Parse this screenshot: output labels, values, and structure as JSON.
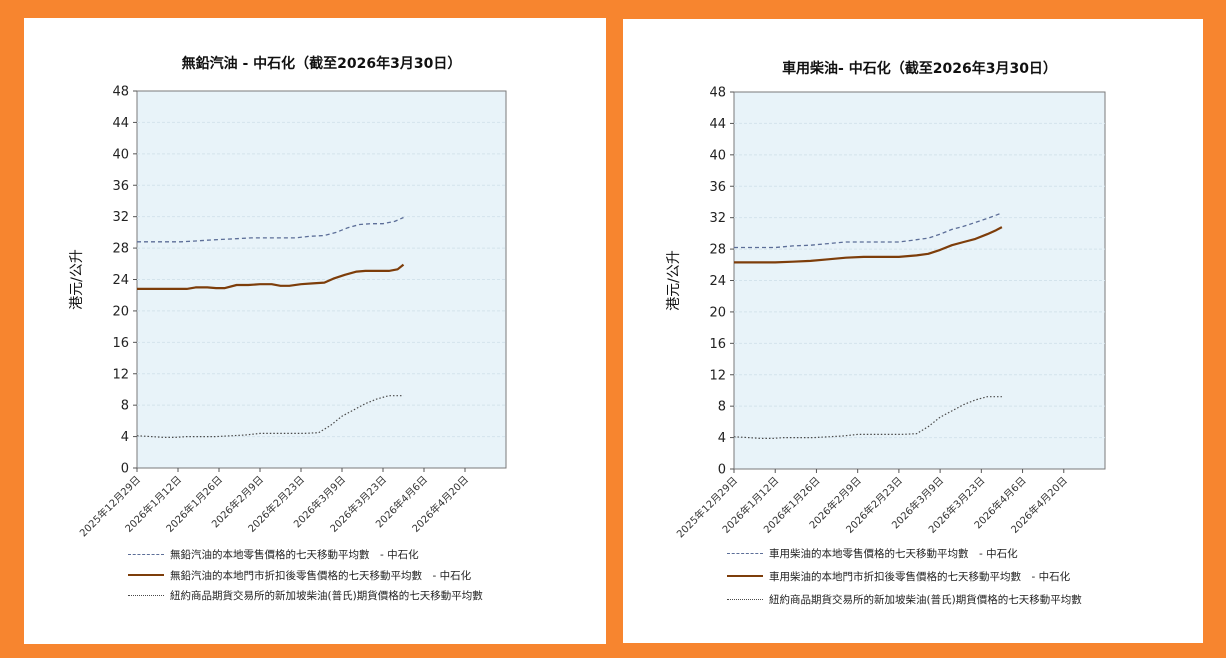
{
  "colors": {
    "background": "#f7852f",
    "panel": "#ffffff",
    "plot_area": "#e8f3f9",
    "dashed_series": "#5c6e98",
    "solid_series": "#7d3d0a",
    "dotted_series": "#4a4a4a"
  },
  "chart_data": [
    {
      "type": "line",
      "title": "無鉛汽油 - 中石化（截至2026年3月30日）",
      "ylabel": "港元/公升",
      "xlabel": "",
      "ylim": [
        0,
        48
      ],
      "yticks": [
        0,
        4,
        8,
        12,
        16,
        20,
        24,
        28,
        32,
        36,
        40,
        44,
        48
      ],
      "x_range": [
        "2025-12-29",
        "2026-05-04"
      ],
      "xticks": [
        "2025年12月29日",
        "2026年1月12日",
        "2026年1月26日",
        "2026年2月9日",
        "2026年2月23日",
        "2026年3月9日",
        "2026年3月23日",
        "2026年4月6日",
        "2026年4月20日"
      ],
      "grid": true,
      "legend_position": "bottom",
      "series": [
        {
          "name": "無鉛汽油的本地零售價格的七天移動平均數　- 中石化",
          "style": "dashed",
          "x": [
            "2025-12-29",
            "2026-01-03",
            "2026-01-08",
            "2026-01-13",
            "2026-01-18",
            "2026-01-22",
            "2026-01-27",
            "2026-02-01",
            "2026-02-06",
            "2026-02-11",
            "2026-02-16",
            "2026-02-21",
            "2026-02-26",
            "2026-03-03",
            "2026-03-07",
            "2026-03-11",
            "2026-03-15",
            "2026-03-19",
            "2026-03-23",
            "2026-03-27",
            "2026-03-30"
          ],
          "y": [
            28.8,
            28.8,
            28.8,
            28.8,
            28.9,
            29.0,
            29.1,
            29.2,
            29.3,
            29.3,
            29.3,
            29.3,
            29.5,
            29.6,
            30.0,
            30.6,
            31.0,
            31.1,
            31.1,
            31.4,
            31.9
          ]
        },
        {
          "name": "無鉛汽油的本地門市折扣後零售價格的七天移動平均數　- 中石化",
          "style": "solid",
          "x": [
            "2025-12-29",
            "2026-01-03",
            "2026-01-07",
            "2026-01-10",
            "2026-01-15",
            "2026-01-18",
            "2026-01-22",
            "2026-01-25",
            "2026-01-28",
            "2026-02-01",
            "2026-02-05",
            "2026-02-09",
            "2026-02-13",
            "2026-02-16",
            "2026-02-19",
            "2026-02-23",
            "2026-02-27",
            "2026-03-03",
            "2026-03-06",
            "2026-03-10",
            "2026-03-14",
            "2026-03-17",
            "2026-03-21",
            "2026-03-25",
            "2026-03-28",
            "2026-03-30"
          ],
          "y": [
            22.8,
            22.8,
            22.8,
            22.8,
            22.8,
            23.0,
            23.0,
            22.9,
            22.9,
            23.3,
            23.3,
            23.4,
            23.4,
            23.2,
            23.2,
            23.4,
            23.5,
            23.6,
            24.1,
            24.6,
            25.0,
            25.1,
            25.1,
            25.1,
            25.3,
            25.9
          ]
        },
        {
          "name": "紐約商品期貨交易所的新加坡柴油(普氏)期貨價格的七天移動平均數",
          "style": "dotted",
          "x": [
            "2025-12-29",
            "2026-01-03",
            "2026-01-07",
            "2026-01-11",
            "2026-01-15",
            "2026-01-20",
            "2026-01-25",
            "2026-01-30",
            "2026-02-04",
            "2026-02-09",
            "2026-02-14",
            "2026-02-19",
            "2026-02-24",
            "2026-03-01",
            "2026-03-05",
            "2026-03-09",
            "2026-03-13",
            "2026-03-17",
            "2026-03-21",
            "2026-03-25",
            "2026-03-28",
            "2026-03-30"
          ],
          "y": [
            4.1,
            4.0,
            3.9,
            3.9,
            4.0,
            4.0,
            4.0,
            4.1,
            4.2,
            4.4,
            4.4,
            4.4,
            4.4,
            4.5,
            5.4,
            6.6,
            7.4,
            8.2,
            8.8,
            9.2,
            9.2,
            9.2
          ]
        }
      ]
    },
    {
      "type": "line",
      "title": "車用柴油- 中石化（截至2026年3月30日）",
      "ylabel": "港元/公升",
      "xlabel": "",
      "ylim": [
        0,
        48
      ],
      "yticks": [
        0,
        4,
        8,
        12,
        16,
        20,
        24,
        28,
        32,
        36,
        40,
        44,
        48
      ],
      "x_range": [
        "2025-12-29",
        "2026-05-04"
      ],
      "xticks": [
        "2025年12月29日",
        "2026年1月12日",
        "2026年1月26日",
        "2026年2月9日",
        "2026年2月23日",
        "2026年3月9日",
        "2026年3月23日",
        "2026年4月6日",
        "2026年4月20日"
      ],
      "grid": true,
      "legend_position": "bottom",
      "series": [
        {
          "name": "車用柴油的本地零售價格的七天移動平均數　- 中石化",
          "style": "dashed",
          "x": [
            "2025-12-29",
            "2026-01-05",
            "2026-01-12",
            "2026-01-18",
            "2026-01-24",
            "2026-01-30",
            "2026-02-05",
            "2026-02-11",
            "2026-02-17",
            "2026-02-23",
            "2026-03-01",
            "2026-03-05",
            "2026-03-09",
            "2026-03-13",
            "2026-03-17",
            "2026-03-21",
            "2026-03-25",
            "2026-03-30"
          ],
          "y": [
            28.2,
            28.2,
            28.2,
            28.4,
            28.5,
            28.7,
            28.9,
            28.9,
            28.9,
            28.9,
            29.2,
            29.4,
            29.9,
            30.5,
            30.9,
            31.4,
            31.9,
            32.6
          ]
        },
        {
          "name": "車用柴油的本地門市折扣後零售價格的七天移動平均數　- 中石化",
          "style": "solid",
          "x": [
            "2025-12-29",
            "2026-01-05",
            "2026-01-12",
            "2026-01-18",
            "2026-01-24",
            "2026-01-30",
            "2026-02-05",
            "2026-02-11",
            "2026-02-17",
            "2026-02-23",
            "2026-03-01",
            "2026-03-05",
            "2026-03-09",
            "2026-03-13",
            "2026-03-17",
            "2026-03-21",
            "2026-03-25",
            "2026-03-28",
            "2026-03-30"
          ],
          "y": [
            26.3,
            26.3,
            26.3,
            26.4,
            26.5,
            26.7,
            26.9,
            27.0,
            27.0,
            27.0,
            27.2,
            27.4,
            27.9,
            28.5,
            28.9,
            29.3,
            29.9,
            30.4,
            30.8
          ]
        },
        {
          "name": "紐約商品期貨交易所的新加坡柴油(普氏)期貨價格的七天移動平均數",
          "style": "dotted",
          "x": [
            "2025-12-29",
            "2026-01-03",
            "2026-01-07",
            "2026-01-11",
            "2026-01-15",
            "2026-01-20",
            "2026-01-25",
            "2026-01-30",
            "2026-02-04",
            "2026-02-09",
            "2026-02-14",
            "2026-02-19",
            "2026-02-24",
            "2026-03-01",
            "2026-03-05",
            "2026-03-09",
            "2026-03-13",
            "2026-03-17",
            "2026-03-21",
            "2026-03-25",
            "2026-03-28",
            "2026-03-30"
          ],
          "y": [
            4.1,
            4.0,
            3.9,
            3.9,
            4.0,
            4.0,
            4.0,
            4.1,
            4.2,
            4.4,
            4.4,
            4.4,
            4.4,
            4.5,
            5.4,
            6.6,
            7.4,
            8.2,
            8.8,
            9.2,
            9.2,
            9.2
          ]
        }
      ]
    }
  ]
}
